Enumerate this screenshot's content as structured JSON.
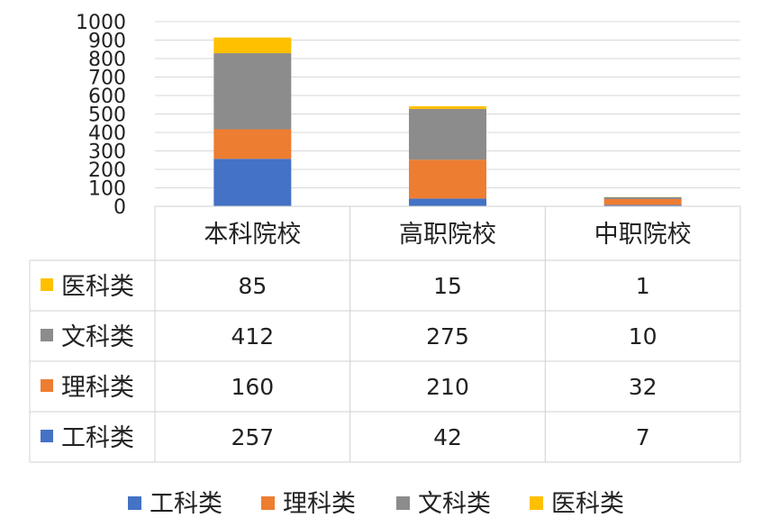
{
  "chart_data": {
    "type": "bar",
    "stacked": true,
    "categories": [
      "本科院校",
      "高职院校",
      "中职院校"
    ],
    "series": [
      {
        "name": "工科类",
        "values": [
          257,
          42,
          7
        ],
        "color": "#4472C4"
      },
      {
        "name": "理科类",
        "values": [
          160,
          210,
          32
        ],
        "color": "#ED7D31"
      },
      {
        "name": "文科类",
        "values": [
          412,
          275,
          10
        ],
        "color": "#8C8C8C"
      },
      {
        "name": "医科类",
        "values": [
          85,
          15,
          1
        ],
        "color": "#FFC000"
      }
    ],
    "table_row_order": [
      "医科类",
      "文科类",
      "理科类",
      "工科类"
    ],
    "ylim": [
      0,
      1000
    ],
    "yticks": [
      "0",
      "100",
      "200",
      "300",
      "400",
      "500",
      "600",
      "700",
      "800",
      "900",
      "1000"
    ],
    "grid": true,
    "legend": "bottom",
    "data_table": true
  }
}
